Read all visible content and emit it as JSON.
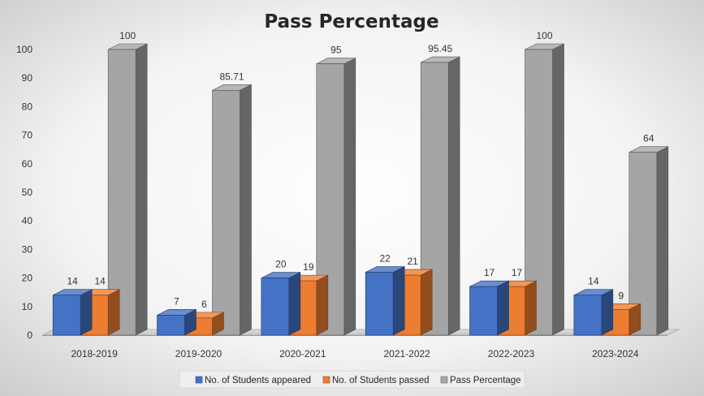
{
  "chart_data": {
    "type": "bar",
    "title": "Pass Percentage",
    "xlabel": "",
    "ylabel": "",
    "ylim": [
      0,
      100
    ],
    "yticks": [
      0,
      10,
      20,
      30,
      40,
      50,
      60,
      70,
      80,
      90,
      100
    ],
    "categories": [
      "2018-2019",
      "2019-2020",
      "2020-2021",
      "2021-2022",
      "2022-2023",
      "2023-2024"
    ],
    "series": [
      {
        "name": "No. of Students appeared",
        "color": "#4472C4",
        "values": [
          14,
          7,
          20,
          22,
          17,
          14
        ],
        "labels": [
          "14",
          "7",
          "20",
          "22",
          "17",
          "14"
        ]
      },
      {
        "name": "No. of Students passed",
        "color": "#ED7D31",
        "values": [
          14,
          6,
          19,
          21,
          17,
          9
        ],
        "labels": [
          "14",
          "6",
          "19",
          "21",
          "17",
          "9"
        ]
      },
      {
        "name": "Pass Percentage",
        "color": "#A5A5A5",
        "values": [
          100,
          85.71,
          95,
          95.45,
          100,
          64
        ],
        "labels": [
          "100",
          "85.71",
          "95",
          "95.45",
          "100",
          "64"
        ]
      }
    ],
    "grid": false,
    "legend": "bottom",
    "style": "3d-clustered-column"
  }
}
